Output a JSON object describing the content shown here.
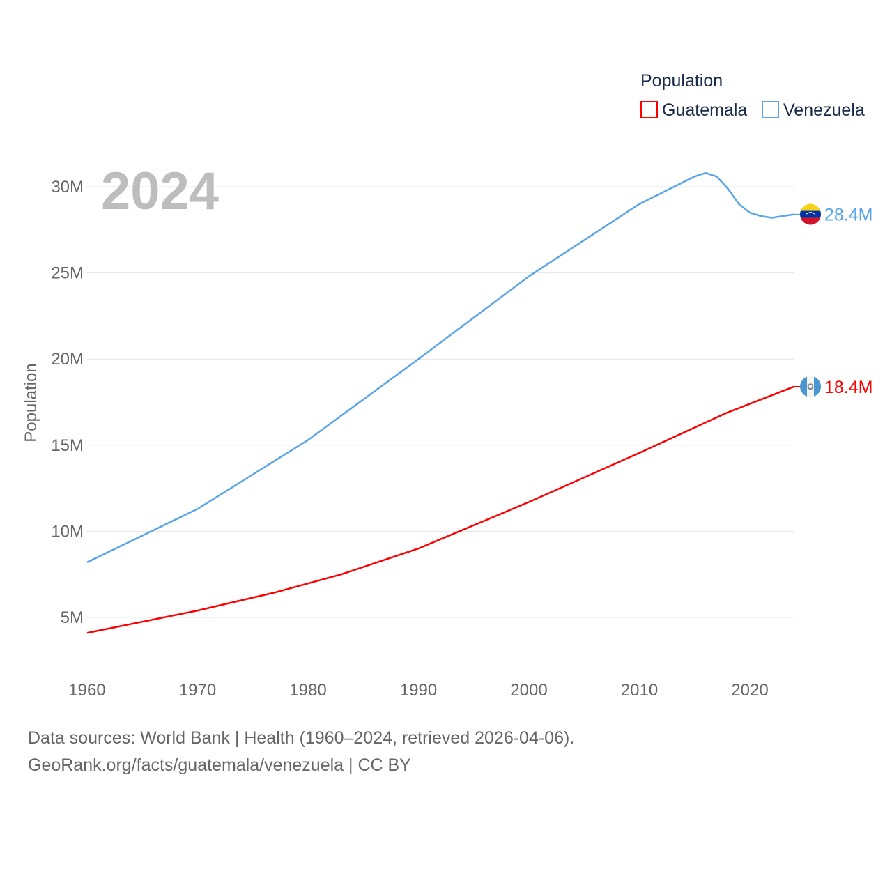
{
  "chart_data": {
    "type": "line",
    "year_label": "2024",
    "ylabel": "Population",
    "legend_title": "Population",
    "legend_placement": "top-right",
    "xlim": [
      1960,
      2024
    ],
    "ylim": [
      0,
      32000000
    ],
    "x_ticks": [
      1960,
      1970,
      1980,
      1990,
      2000,
      2010,
      2020
    ],
    "x_tick_labels": [
      "1960",
      "1970",
      "1980",
      "1990",
      "2000",
      "2010",
      "2020"
    ],
    "y_ticks": [
      5000000,
      10000000,
      15000000,
      20000000,
      25000000,
      30000000
    ],
    "y_tick_labels": [
      "5M",
      "10M",
      "15M",
      "20M",
      "25M",
      "30M"
    ],
    "grid": true,
    "series": [
      {
        "name": "Guatemala",
        "color": "#ff0000",
        "end_label": "18.4M",
        "flag": "guatemala-flag",
        "x": [
          1960,
          1965,
          1970,
          1977,
          1983,
          1990,
          2000,
          2010,
          2018,
          2024
        ],
        "values": [
          4100000,
          4750000,
          5400000,
          6450000,
          7500000,
          9000000,
          11700000,
          14550000,
          16900000,
          18400000
        ]
      },
      {
        "name": "Venezuela",
        "color": "#5aa5e8",
        "end_label": "28.4M",
        "flag": "venezuela-flag",
        "x": [
          1960,
          1970,
          1980,
          1990,
          2000,
          2010,
          2015,
          2016,
          2017,
          2018,
          2019,
          2020,
          2021,
          2022,
          2023,
          2024
        ],
        "values": [
          8200000,
          11300000,
          15300000,
          20000000,
          24800000,
          29000000,
          30600000,
          30800000,
          30600000,
          29900000,
          29000000,
          28500000,
          28300000,
          28200000,
          28300000,
          28400000
        ]
      }
    ]
  },
  "footer": {
    "line1": "Data sources: World Bank | Health (1960–2024, retrieved 2026-04-06).",
    "line2": "GeoRank.org/facts/guatemala/venezuela | CC BY"
  }
}
